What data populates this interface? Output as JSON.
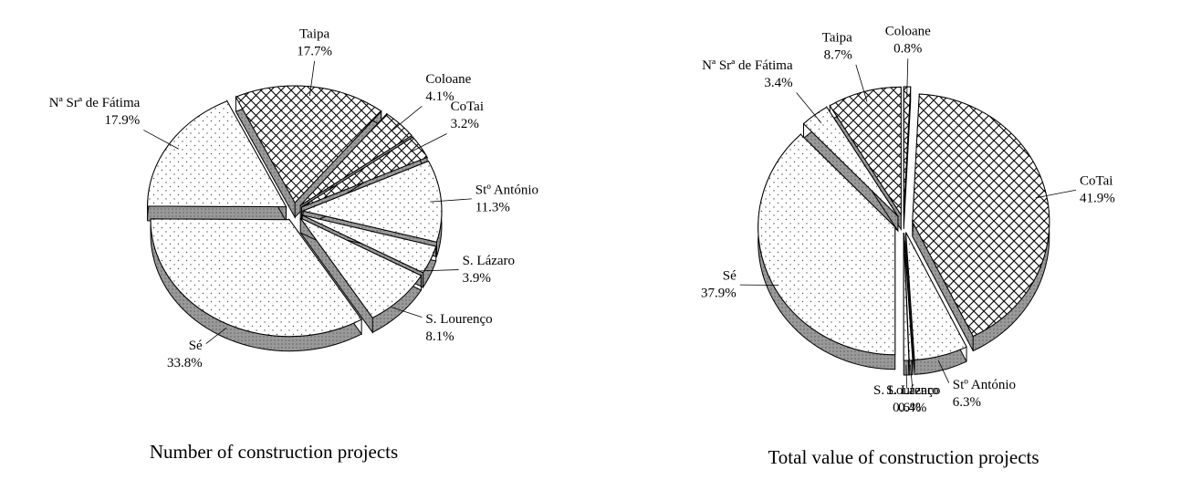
{
  "chart_data": [
    {
      "type": "pie",
      "title": "Number of construction projects",
      "categories": [
        "Taipa",
        "Coloane",
        "CoTai",
        "Stº António",
        "S. Lázaro",
        "S. Lourenço",
        "Sé",
        "Nª Srª de Fátima"
      ],
      "values": [
        17.7,
        4.1,
        3.2,
        11.3,
        3.9,
        8.1,
        33.8,
        17.9
      ],
      "value_labels": [
        "17.7%",
        "4.1%",
        "3.2%",
        "11.3%",
        "3.9%",
        "8.1%",
        "33.8%",
        "17.9%"
      ],
      "patterns": [
        "grid",
        "grid",
        "grid",
        "dots",
        "dots",
        "dots",
        "dots",
        "dots"
      ]
    },
    {
      "type": "pie",
      "title": "Total value of construction projects",
      "categories": [
        "CoTai",
        "Stº António",
        "S. Lázaro",
        "S. Lourenço",
        "Sé",
        "Nª Srª de Fátima",
        "Taipa",
        "Coloane"
      ],
      "values": [
        41.9,
        6.3,
        0.4,
        0.6,
        37.9,
        3.4,
        8.7,
        0.8
      ],
      "value_labels": [
        "41.9%",
        "6.3%",
        "0.4%",
        "0.6%",
        "37.9%",
        "3.4%",
        "8.7%",
        "0.8%"
      ],
      "patterns": [
        "grid",
        "dots",
        "dots",
        "dots",
        "dots",
        "dots",
        "grid",
        "grid"
      ]
    }
  ]
}
